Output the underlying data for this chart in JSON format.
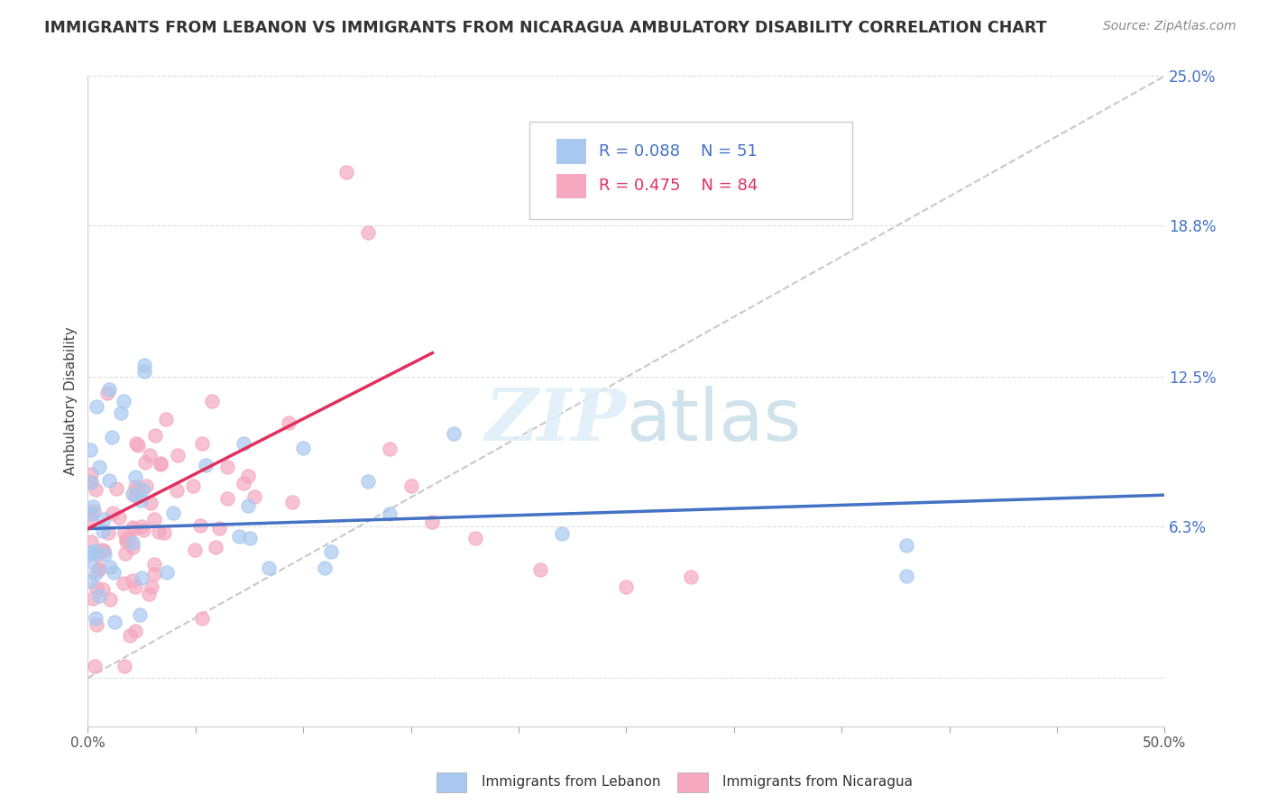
{
  "title": "IMMIGRANTS FROM LEBANON VS IMMIGRANTS FROM NICARAGUA AMBULATORY DISABILITY CORRELATION CHART",
  "source": "Source: ZipAtlas.com",
  "ylabel": "Ambulatory Disability",
  "xlim": [
    0.0,
    0.5
  ],
  "ylim": [
    -0.02,
    0.25
  ],
  "ytick_right_labels": [
    "25.0%",
    "18.8%",
    "12.5%",
    "6.3%"
  ],
  "ytick_right_values": [
    0.25,
    0.188,
    0.125,
    0.063
  ],
  "lebanon_R": 0.088,
  "lebanon_N": 51,
  "nicaragua_R": 0.475,
  "nicaragua_N": 84,
  "lebanon_color": "#a8c8f0",
  "nicaragua_color": "#f5a8c0",
  "lebanon_line_color": "#4472c4",
  "nicaragua_line_color": "#e03060",
  "ref_line_color": "#c8c8c8",
  "background_color": "#ffffff",
  "leb_line_start_x": 0.0,
  "leb_line_start_y": 0.062,
  "leb_line_end_x": 0.5,
  "leb_line_end_y": 0.076,
  "nic_line_start_x": 0.0,
  "nic_line_start_y": 0.062,
  "nic_line_end_x": 0.16,
  "nic_line_end_y": 0.135
}
